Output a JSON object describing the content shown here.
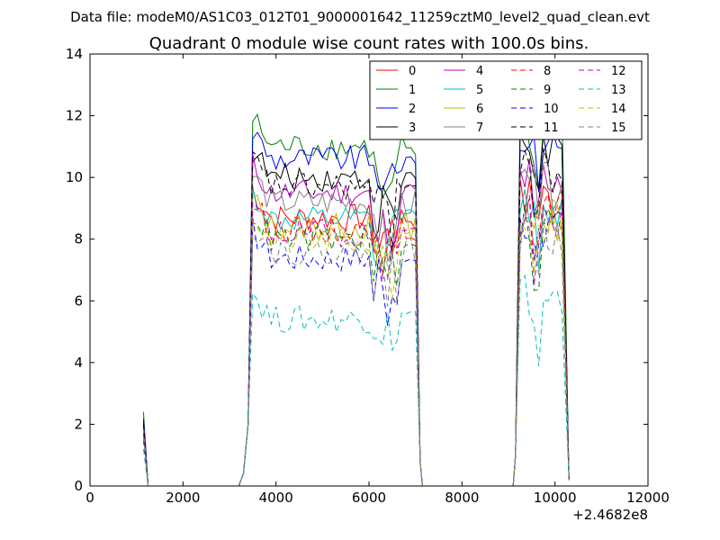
{
  "suptitle": "Data file: modeM0/AS1C03_012T01_9000001642_11259cztM0_level2_quad_clean.evt",
  "chart_data": {
    "type": "line",
    "title": "Quadrant 0 module wise count rates with 100.0s bins.",
    "xlabel": "",
    "ylabel": "",
    "xlim": [
      0,
      12000
    ],
    "ylim": [
      0,
      14
    ],
    "x_offset_label": "+2.4682e8",
    "x_ticks": [
      0,
      2000,
      4000,
      6000,
      8000,
      10000,
      12000
    ],
    "x_tick_labels": [
      "0",
      "2000",
      "4000",
      "6000",
      "8000",
      "10000",
      "12000"
    ],
    "y_ticks": [
      0,
      2,
      4,
      6,
      8,
      10,
      12,
      14
    ],
    "y_tick_labels": [
      "0",
      "2",
      "4",
      "6",
      "8",
      "10",
      "12",
      "14"
    ],
    "grid": false,
    "legend_position": "top-right",
    "legend_columns": 4,
    "series": [
      {
        "name": "0",
        "color": "#ff0000",
        "dash": "solid",
        "level": 8.7,
        "start": 1.9,
        "pre": 0.0,
        "g2": 9.3
      },
      {
        "name": "1",
        "color": "#008000",
        "dash": "solid",
        "level": 11.0,
        "start": 2.4,
        "pre": 0.0,
        "g2": 11.6
      },
      {
        "name": "2",
        "color": "#0000ff",
        "dash": "solid",
        "level": 10.6,
        "start": 2.2,
        "pre": 0.0,
        "g2": 11.2
      },
      {
        "name": "3",
        "color": "#000000",
        "dash": "solid",
        "level": 10.0,
        "start": 2.1,
        "pre": 0.0,
        "g2": 10.6
      },
      {
        "name": "4",
        "color": "#bf00bf",
        "dash": "solid",
        "level": 9.5,
        "start": 2.0,
        "pre": 0.0,
        "g2": 10.0
      },
      {
        "name": "5",
        "color": "#00bfbf",
        "dash": "solid",
        "level": 8.6,
        "start": 1.8,
        "pre": 0.0,
        "g2": 9.1
      },
      {
        "name": "6",
        "color": "#bfbf00",
        "dash": "solid",
        "level": 8.4,
        "start": 1.7,
        "pre": 0.0,
        "g2": 8.9
      },
      {
        "name": "7",
        "color": "#808080",
        "dash": "solid",
        "level": 9.2,
        "start": 1.9,
        "pre": 0.0,
        "g2": 9.7
      },
      {
        "name": "8",
        "color": "#ff0000",
        "dash": "dashed",
        "level": 8.3,
        "start": 1.7,
        "pre": 0.0,
        "g2": 8.8
      },
      {
        "name": "9",
        "color": "#008000",
        "dash": "dashed",
        "level": 8.0,
        "start": 1.7,
        "pre": 0.0,
        "g2": 8.5
      },
      {
        "name": "10",
        "color": "#0000ff",
        "dash": "dashed",
        "level": 7.4,
        "start": 1.5,
        "pre": 0.0,
        "g2": 8.2
      },
      {
        "name": "11",
        "color": "#000000",
        "dash": "dashed",
        "level": 9.7,
        "start": 2.0,
        "pre": 0.0,
        "g2": 10.2
      },
      {
        "name": "12",
        "color": "#bf00bf",
        "dash": "dashed",
        "level": 8.2,
        "start": 1.7,
        "pre": 0.0,
        "g2": 8.7
      },
      {
        "name": "13",
        "color": "#00bfbf",
        "dash": "dashed",
        "level": 5.4,
        "start": 1.2,
        "pre": 0.0,
        "g2": 6.1
      },
      {
        "name": "14",
        "color": "#bfbf00",
        "dash": "dashed",
        "level": 7.9,
        "start": 1.6,
        "pre": 0.0,
        "g2": 8.4
      },
      {
        "name": "15",
        "color": "#808080",
        "dash": "dashed",
        "level": 7.6,
        "start": 1.6,
        "pre": 0.0,
        "g2": 8.1
      }
    ],
    "segments": [
      {
        "label": "first",
        "t_start": 1150,
        "t_end": 1250
      },
      {
        "label": "second",
        "t_start": 3300,
        "t_end": 7100
      },
      {
        "label": "third",
        "t_start": 9150,
        "t_end": 10300
      }
    ]
  }
}
